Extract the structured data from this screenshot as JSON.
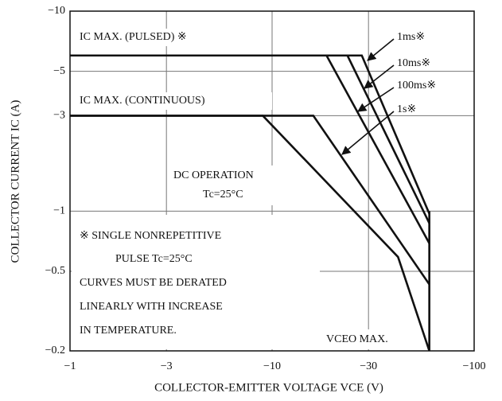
{
  "chart_data": {
    "type": "line",
    "xscale": "log",
    "yscale": "log",
    "grid": true,
    "color": "#111111",
    "xlabel": "COLLECTOR-EMITTER VOLTAGE  VCE  (V)",
    "ylabel": "COLLECTOR CURRENT  IC  (A)",
    "xlim": [
      -1,
      -100
    ],
    "xticks": [
      {
        "value": -1,
        "label": "−1"
      },
      {
        "value": -3,
        "label": "−3"
      },
      {
        "value": -10,
        "label": "−10"
      },
      {
        "value": -30,
        "label": "−30"
      },
      {
        "value": -100,
        "label": "−100"
      }
    ],
    "ylim": [
      -0.2,
      -10
    ],
    "yticks": [
      {
        "value": -10,
        "label": "−10"
      },
      {
        "value": -5,
        "label": "−5"
      },
      {
        "value": -3,
        "label": "−3"
      },
      {
        "value": -1,
        "label": "−1"
      },
      {
        "value": -0.5,
        "label": "−0.5"
      },
      {
        "value": -0.2,
        "label": "−0.2"
      }
    ],
    "series": [
      {
        "x": [
          -1,
          -9,
          -42,
          -60
        ],
        "values": [
          -3,
          -3,
          -0.59,
          -0.2
        ]
      },
      {
        "x": [
          -1,
          -16,
          -60
        ],
        "values": [
          -3,
          -3,
          -0.43
        ]
      },
      {
        "x": [
          -1,
          -18.6,
          -60
        ],
        "values": [
          -6,
          -6,
          -0.69
        ]
      },
      {
        "x": [
          -1,
          -23.6,
          -60
        ],
        "values": [
          -6,
          -6,
          -0.87
        ]
      },
      {
        "x": [
          -1,
          -27.8,
          -60
        ],
        "values": [
          -6,
          -6,
          -0.97
        ]
      },
      {
        "x": [
          -60,
          -60
        ],
        "values": [
          -0.2,
          -1
        ]
      }
    ],
    "annotations": [
      "IC MAX. (PULSED) ※",
      "IC MAX. (CONTINUOUS)",
      "1ms※",
      "10ms※",
      "100ms※",
      "1s※",
      "DC OPERATION",
      "Tc=25°C",
      "※  SINGLE NONREPETITIVE",
      "PULSE Tc=25°C",
      "CURVES MUST BE DERATED",
      "LINEARLY WITH INCREASE",
      "IN TEMPERATURE.",
      "VCEO MAX."
    ]
  }
}
